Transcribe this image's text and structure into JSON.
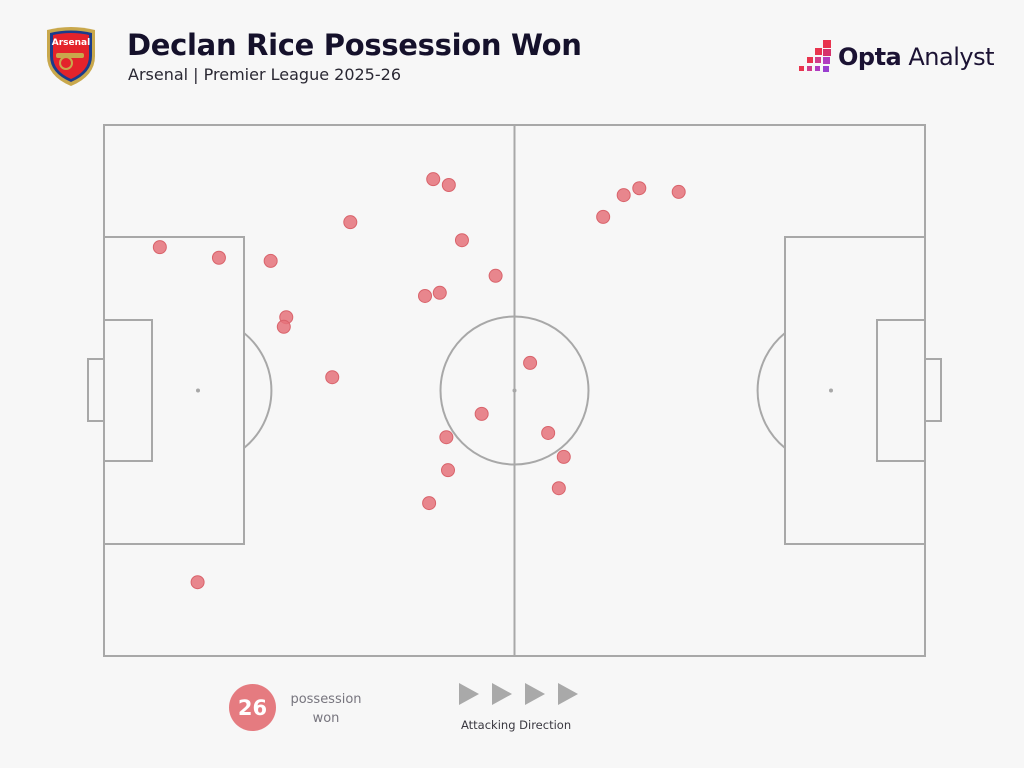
{
  "header": {
    "title": "Declan Rice Possession Won",
    "subtitle": "Arsenal | Premier League 2025-26",
    "club_crest_text": "Arsenal",
    "brand": {
      "bold": "Opta",
      "regular": " Analyst"
    }
  },
  "legend": {
    "count": "26",
    "label_line1": "possession",
    "label_line2": "won",
    "direction_label": "Attacking Direction"
  },
  "colors": {
    "point": "#e5727a",
    "lines": "#a8a8a8",
    "background": "#f7f7f7",
    "title": "#15112b"
  },
  "chart_data": {
    "type": "scatter",
    "title": "Declan Rice Possession Won",
    "subtitle": "Arsenal | Premier League 2025-26",
    "coordinate_system": "pitch 0-100 length (left to right, attacking right) x 0-100 width (top to bottom)",
    "xlim": [
      0,
      100
    ],
    "ylim": [
      0,
      100
    ],
    "grid": false,
    "points": [
      {
        "x": 40.1,
        "y": 10.2
      },
      {
        "x": 42.0,
        "y": 11.3
      },
      {
        "x": 30.0,
        "y": 18.3
      },
      {
        "x": 6.8,
        "y": 23.0
      },
      {
        "x": 14.0,
        "y": 25.0
      },
      {
        "x": 20.3,
        "y": 25.6
      },
      {
        "x": 43.6,
        "y": 21.7
      },
      {
        "x": 47.7,
        "y": 28.4
      },
      {
        "x": 39.1,
        "y": 32.2
      },
      {
        "x": 40.9,
        "y": 31.6
      },
      {
        "x": 22.2,
        "y": 36.2
      },
      {
        "x": 21.9,
        "y": 38.0
      },
      {
        "x": 27.8,
        "y": 47.5
      },
      {
        "x": 51.9,
        "y": 44.8
      },
      {
        "x": 46.0,
        "y": 54.4
      },
      {
        "x": 41.7,
        "y": 58.8
      },
      {
        "x": 54.1,
        "y": 58.0
      },
      {
        "x": 56.0,
        "y": 62.5
      },
      {
        "x": 41.9,
        "y": 65.0
      },
      {
        "x": 55.4,
        "y": 68.4
      },
      {
        "x": 39.6,
        "y": 71.2
      },
      {
        "x": 11.4,
        "y": 86.1
      },
      {
        "x": 60.8,
        "y": 17.3
      },
      {
        "x": 63.3,
        "y": 13.2
      },
      {
        "x": 65.2,
        "y": 11.9
      },
      {
        "x": 70.0,
        "y": 12.6
      }
    ]
  }
}
